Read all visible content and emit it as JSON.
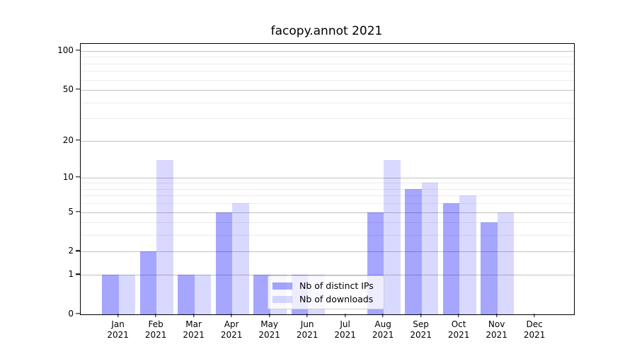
{
  "title": "facopy.annot 2021",
  "colors": {
    "bar_distinct_ips": "rgba(0,0,255,0.35)",
    "bar_downloads": "rgba(0,0,255,0.15)",
    "grid_major": "#c2c2c2",
    "grid_minor": "#ececec",
    "axis_line": "#000000",
    "legend_border": "#cccccc",
    "legend_background": "rgba(255,255,255,0.8)"
  },
  "chart_data": {
    "type": "bar",
    "title": "facopy.annot 2021",
    "categories": [
      "Jan 2021",
      "Feb 2021",
      "Mar 2021",
      "Apr 2021",
      "May 2021",
      "Jun 2021",
      "Jul 2021",
      "Aug 2021",
      "Sep 2021",
      "Oct 2021",
      "Nov 2021",
      "Dec 2021"
    ],
    "series": [
      {
        "name": "Nb of distinct IPs",
        "key": "distinct-ips",
        "color": "rgba(0,0,255,0.35)",
        "values": [
          1,
          2,
          1,
          5,
          1,
          1,
          0,
          5,
          8,
          6,
          4,
          0
        ]
      },
      {
        "name": "Nb of downloads",
        "key": "downloads",
        "color": "rgba(0,0,255,0.15)",
        "values": [
          1,
          14,
          1,
          6,
          1,
          1,
          0,
          14,
          9,
          7,
          5,
          0
        ]
      }
    ],
    "y_axis": {
      "scale": "log1p",
      "tick_values": [
        0,
        1,
        2,
        5,
        10,
        20,
        50,
        100
      ],
      "tick_labels": [
        "0",
        "1",
        "2",
        "5",
        "10",
        "20",
        "50",
        "100"
      ],
      "major_gridlines": [
        1,
        2,
        5,
        10,
        20,
        50,
        100
      ],
      "minor_gridlines": [
        3,
        4,
        6,
        7,
        8,
        9,
        30,
        40,
        60,
        70,
        80,
        90
      ],
      "range_max_value": 100
    },
    "x_axis": {
      "label_line2": "2021"
    },
    "legend": {
      "position": "lower-center",
      "entries": [
        "Nb of distinct IPs",
        "Nb of downloads"
      ]
    },
    "grid": true
  }
}
